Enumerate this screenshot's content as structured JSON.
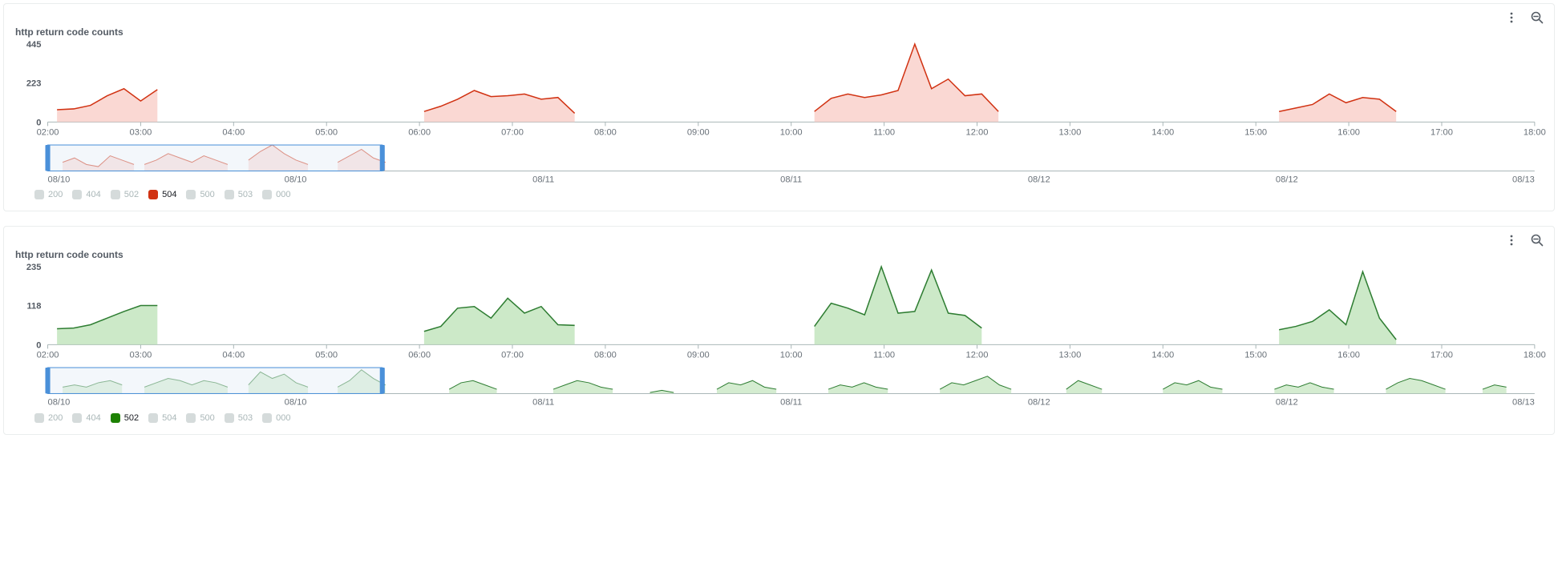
{
  "panels": [
    {
      "title": "http return code counts",
      "type": "area",
      "series_color": "#d13212",
      "fill_color": "#f7c3bb",
      "fill_opacity": 0.65,
      "line_width": 1.5,
      "background_color": "#ffffff",
      "axis_label_color": "#687078",
      "axis_label_fontsize": 11,
      "ymax": 445,
      "y_ticks": [
        0,
        223,
        445
      ],
      "x_times": [
        "02:00",
        "03:00",
        "04:00",
        "05:00",
        "06:00",
        "07:00",
        "08:00",
        "09:00",
        "10:00",
        "11:00",
        "12:00",
        "13:00",
        "14:00",
        "15:00",
        "16:00",
        "17:00",
        "18:00"
      ],
      "x_range_units": 17,
      "segments": [
        {
          "start_x": 0.1,
          "points": [
            70,
            75,
            95,
            150,
            190,
            120,
            185
          ]
        },
        {
          "start_x": 4.05,
          "points": [
            60,
            90,
            130,
            180,
            145,
            150,
            160,
            130,
            140,
            50
          ]
        },
        {
          "start_x": 8.25,
          "points": [
            60,
            135,
            160,
            140,
            155,
            180,
            445,
            190,
            245,
            150,
            160,
            60
          ]
        },
        {
          "start_x": 13.25,
          "points": [
            60,
            80,
            100,
            160,
            110,
            140,
            130,
            60
          ]
        }
      ],
      "mini": {
        "background": "#ffffff",
        "brush": {
          "from": 0.0,
          "to": 0.225,
          "fill": "#e7f0f7",
          "stroke": "#4a90d9"
        },
        "dates": [
          "08/10",
          "08/10",
          "08/11",
          "08/11",
          "08/12",
          "08/12",
          "08/13"
        ],
        "segments": [
          {
            "start_x": 0.01,
            "points": [
              4,
              6,
              3,
              2,
              7,
              5,
              3
            ]
          },
          {
            "start_x": 0.065,
            "points": [
              3,
              5,
              8,
              6,
              4,
              7,
              5,
              3
            ]
          },
          {
            "start_x": 0.135,
            "points": [
              5,
              9,
              12,
              8,
              5,
              3
            ]
          },
          {
            "start_x": 0.195,
            "points": [
              4,
              7,
              10,
              6,
              4
            ]
          }
        ]
      },
      "legend": [
        {
          "label": "200",
          "color": "#d5dbdb",
          "active": false
        },
        {
          "label": "404",
          "color": "#d5dbdb",
          "active": false
        },
        {
          "label": "502",
          "color": "#d5dbdb",
          "active": false
        },
        {
          "label": "504",
          "color": "#d13212",
          "active": true
        },
        {
          "label": "500",
          "color": "#d5dbdb",
          "active": false
        },
        {
          "label": "503",
          "color": "#d5dbdb",
          "active": false
        },
        {
          "label": "000",
          "color": "#d5dbdb",
          "active": false
        }
      ]
    },
    {
      "title": "http return code counts",
      "type": "area",
      "series_color": "#2e7d32",
      "fill_color": "#b7e0b1",
      "fill_opacity": 0.7,
      "line_width": 1.5,
      "background_color": "#ffffff",
      "axis_label_color": "#687078",
      "axis_label_fontsize": 11,
      "ymax": 235,
      "y_ticks": [
        0,
        118,
        235
      ],
      "x_times": [
        "02:00",
        "03:00",
        "04:00",
        "05:00",
        "06:00",
        "07:00",
        "08:00",
        "09:00",
        "10:00",
        "11:00",
        "12:00",
        "13:00",
        "14:00",
        "15:00",
        "16:00",
        "17:00",
        "18:00"
      ],
      "x_range_units": 17,
      "segments": [
        {
          "start_x": 0.1,
          "points": [
            48,
            50,
            60,
            80,
            100,
            118,
            118
          ]
        },
        {
          "start_x": 4.05,
          "points": [
            40,
            55,
            110,
            115,
            80,
            140,
            95,
            115,
            60,
            58
          ]
        },
        {
          "start_x": 8.25,
          "points": [
            55,
            125,
            110,
            90,
            235,
            95,
            100,
            225,
            95,
            88,
            50
          ]
        },
        {
          "start_x": 13.25,
          "points": [
            45,
            55,
            70,
            105,
            60,
            220,
            80,
            15
          ]
        }
      ],
      "mini": {
        "background": "#ffffff",
        "brush": {
          "from": 0.0,
          "to": 0.225,
          "fill": "#e7f0f7",
          "stroke": "#4a90d9"
        },
        "dates": [
          "08/10",
          "08/10",
          "08/11",
          "08/11",
          "08/12",
          "08/12",
          "08/13"
        ],
        "segments": [
          {
            "start_x": 0.01,
            "points": [
              3,
              4,
              3,
              5,
              6,
              4
            ]
          },
          {
            "start_x": 0.065,
            "points": [
              3,
              5,
              7,
              6,
              4,
              6,
              5,
              3
            ]
          },
          {
            "start_x": 0.135,
            "points": [
              4,
              10,
              7,
              9,
              5,
              3
            ]
          },
          {
            "start_x": 0.195,
            "points": [
              3,
              6,
              11,
              7,
              4
            ]
          },
          {
            "start_x": 0.27,
            "points": [
              2,
              5,
              6,
              4,
              2
            ]
          },
          {
            "start_x": 0.34,
            "points": [
              2,
              4,
              6,
              5,
              3,
              2
            ]
          },
          {
            "start_x": 0.405,
            "points": [
              0.5,
              1.5,
              0.5
            ]
          },
          {
            "start_x": 0.45,
            "points": [
              2,
              5,
              4,
              6,
              3,
              2
            ]
          },
          {
            "start_x": 0.525,
            "points": [
              2,
              4,
              3,
              5,
              3,
              2
            ]
          },
          {
            "start_x": 0.6,
            "points": [
              2,
              5,
              4,
              6,
              8,
              4,
              2
            ]
          },
          {
            "start_x": 0.685,
            "points": [
              2,
              6,
              4,
              2
            ]
          },
          {
            "start_x": 0.75,
            "points": [
              2,
              5,
              4,
              6,
              3,
              2
            ]
          },
          {
            "start_x": 0.825,
            "points": [
              2,
              4,
              3,
              5,
              3,
              2
            ]
          },
          {
            "start_x": 0.9,
            "points": [
              2,
              5,
              7,
              6,
              4,
              2
            ]
          },
          {
            "start_x": 0.965,
            "points": [
              2,
              4,
              3
            ]
          }
        ]
      },
      "legend": [
        {
          "label": "200",
          "color": "#d5dbdb",
          "active": false
        },
        {
          "label": "404",
          "color": "#d5dbdb",
          "active": false
        },
        {
          "label": "502",
          "color": "#1d8102",
          "active": true
        },
        {
          "label": "504",
          "color": "#d5dbdb",
          "active": false
        },
        {
          "label": "500",
          "color": "#d5dbdb",
          "active": false
        },
        {
          "label": "503",
          "color": "#d5dbdb",
          "active": false
        },
        {
          "label": "000",
          "color": "#d5dbdb",
          "active": false
        }
      ]
    }
  ]
}
